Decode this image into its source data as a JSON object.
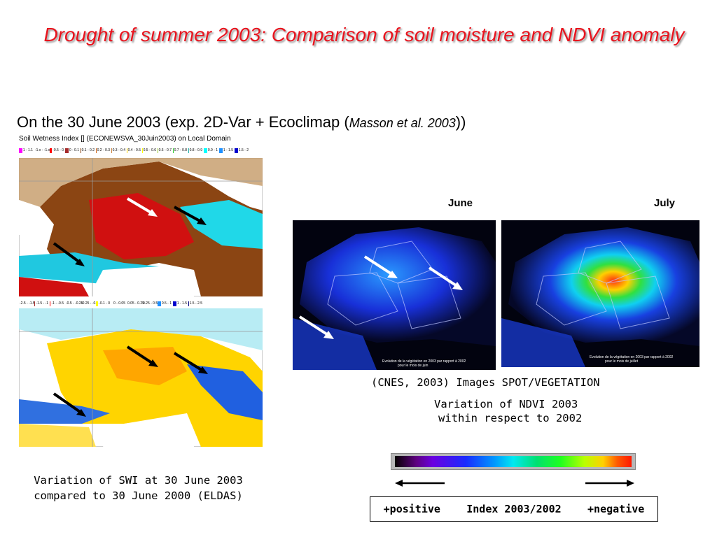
{
  "title": "Drought of summer 2003: Comparison of soil moisture and NDVI anomaly",
  "subtitle": {
    "prefix": "On the 30 June 2003 (exp. 2D-Var + Ecoclimap (",
    "citation": "Masson et al. 2003",
    "suffix": "))"
  },
  "map_header": "Soil Wetness Index [] (ECONEWSVA_30Juin2003) on Local Domain",
  "legend_top": {
    "labels": [
      "1 - 1.1",
      "-1.x - -1.x",
      "-0.5 - 0",
      "0 - 0.1",
      "0.1 - 0.2",
      "0.2 - 0.3",
      "0.3 - 0.4",
      "0.4 - 0.5",
      "0.5 - 0.6",
      "0.6 - 0.7",
      "0.7 - 0.8",
      "0.8 - 0.9",
      "0.9 - 1",
      "1 - 1.5",
      "1.5 - 2"
    ],
    "colors": [
      "#ff00ff",
      "#ff8c00",
      "#ff0000",
      "#a52a2a",
      "#8b4513",
      "#d2691e",
      "#cd853f",
      "#ffd700",
      "#ffff00",
      "#9acd32",
      "#32cd32",
      "#20b2aa",
      "#00ffff",
      "#1e90ff",
      "#0000cd"
    ]
  },
  "legend_bottom": {
    "labels": [
      "-2.5 - -1.5",
      "-1.5 - -1",
      "-1 - -0.5",
      "-0.5 - -0.25",
      "-0.25 - -0.1",
      "-0.1 - 0",
      "0 - 0.05",
      "0.05 - 0.25",
      "0.25 - 0.5",
      "0.5 - 1",
      "1 - 1.5",
      "1.5 - 2.5"
    ],
    "colors": [
      "#5a0000",
      "#a52a2a",
      "#ff0000",
      "#ff8c00",
      "#ffd700",
      "#ffff00",
      "#ffffff",
      "#e0ffff",
      "#00ffff",
      "#1e90ff",
      "#0000cd",
      "#000080"
    ]
  },
  "left_caption": {
    "line1": "Variation of SWI at 30 June 2003",
    "line2": "compared to 30 June 2000 (ELDAS)"
  },
  "satellite": {
    "june_label": "June",
    "july_label": "July",
    "image_text_june_1": "Evolution de la végétation en 2003 par rapport à 2002",
    "image_text_june_2": "pour le mois de juin",
    "image_text_july_1": "Evolution de la végétation en 2003 par rapport à 2002",
    "image_text_july_2": "pour le mois de juillet",
    "source": "(CNES, 2003) Images SPOT/VEGETATION",
    "caption_line1": "Variation of NDVI 2003",
    "caption_line2": "within respect to 2002"
  },
  "index_legend": {
    "positive": "+positive",
    "index": "Index 2003/2002",
    "negative": "+negative"
  },
  "colors": {
    "title": "#e8141e",
    "arrow_dark": "#000000",
    "arrow_light": "#ffffff"
  }
}
